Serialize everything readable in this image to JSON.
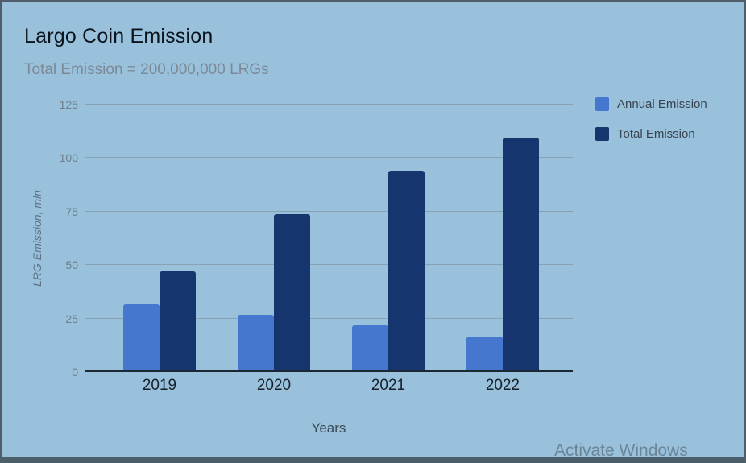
{
  "window": {
    "watermark": "Activate Windows",
    "background_color": "#99c1dc",
    "border_color": "#4e5d68"
  },
  "chart_data": {
    "type": "bar",
    "title": "Largo Coin Emission",
    "subtitle": "Total Emission = 200,000,000 LRGs",
    "xlabel": "Years",
    "ylabel": "LRG Emission, mln",
    "categories": [
      "2019",
      "2020",
      "2021",
      "2022"
    ],
    "series": [
      {
        "name": "Annual Emission",
        "color": "#4477cd",
        "values": [
          31,
          26,
          21,
          16
        ]
      },
      {
        "name": "Total Emission",
        "color": "#16356f",
        "values": [
          46.5,
          73,
          93.5,
          109
        ]
      }
    ],
    "ylim": [
      0,
      125
    ],
    "yticks": [
      0,
      25,
      50,
      75,
      100,
      125
    ],
    "grid": true,
    "legend_position": "top-right",
    "gridline_color": "#87a3b3",
    "axis_line_color": "#1b2834"
  }
}
